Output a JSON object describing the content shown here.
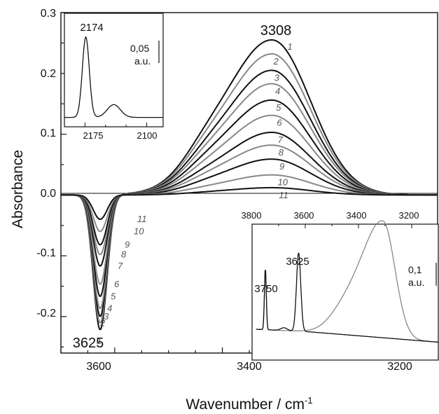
{
  "chart_data": [
    {
      "type": "line",
      "title": "",
      "xlabel": "Wavenumber / cm",
      "xlabel_sup": "-1",
      "ylabel": "Absorbance",
      "xlim": [
        3700,
        3000
      ],
      "ylim": [
        -0.26,
        0.3
      ],
      "x_ticks": [
        "3600",
        "3400",
        "3200"
      ],
      "y_ticks": [
        "0.3",
        "0.2",
        "0.1",
        "0.0",
        "-0.1",
        "-0.2"
      ],
      "peak_labels": {
        "positive": "3308",
        "negative": "3625"
      },
      "series": [
        {
          "label": "1",
          "color": "#111111",
          "peak_pos": 0.255,
          "peak_neg": -0.222
        },
        {
          "label": "2",
          "color": "#888888",
          "peak_pos": 0.232,
          "peak_neg": -0.211
        },
        {
          "label": "3",
          "color": "#111111",
          "peak_pos": 0.205,
          "peak_neg": -0.2
        },
        {
          "label": "4",
          "color": "#888888",
          "peak_pos": 0.183,
          "peak_neg": -0.187
        },
        {
          "label": "5",
          "color": "#111111",
          "peak_pos": 0.156,
          "peak_neg": -0.167
        },
        {
          "label": "6",
          "color": "#888888",
          "peak_pos": 0.131,
          "peak_neg": -0.147
        },
        {
          "label": "7",
          "color": "#111111",
          "peak_pos": 0.103,
          "peak_neg": -0.117
        },
        {
          "label": "8",
          "color": "#888888",
          "peak_pos": 0.082,
          "peak_neg": -0.098
        },
        {
          "label": "9",
          "color": "#111111",
          "peak_pos": 0.059,
          "peak_neg": -0.082
        },
        {
          "label": "10",
          "color": "#888888",
          "peak_pos": 0.033,
          "peak_neg": -0.06
        },
        {
          "label": "11",
          "color": "#111111",
          "peak_pos": 0.012,
          "peak_neg": -0.04
        }
      ]
    },
    {
      "type": "line",
      "title": "",
      "x_ticks": [
        "2175",
        "2100"
      ],
      "xlim": [
        2200,
        2080
      ],
      "peak_label": "2174",
      "peak_x": 2174,
      "secondary_peak_x": 2140,
      "scale_value": "0,05",
      "scale_unit": "a.u."
    },
    {
      "type": "line",
      "title": "",
      "x_ticks": [
        "3800",
        "3600",
        "3400",
        "3200"
      ],
      "xlim": [
        3800,
        3100
      ],
      "peak_labels": [
        "3750",
        "3625"
      ],
      "scale_value": "0,1",
      "scale_unit": "a.u.",
      "series": [
        {
          "color": "#111111",
          "peaks": [
            3750,
            3625
          ]
        },
        {
          "color": "#888888",
          "peaks": [
            3750,
            3308
          ]
        }
      ]
    }
  ]
}
